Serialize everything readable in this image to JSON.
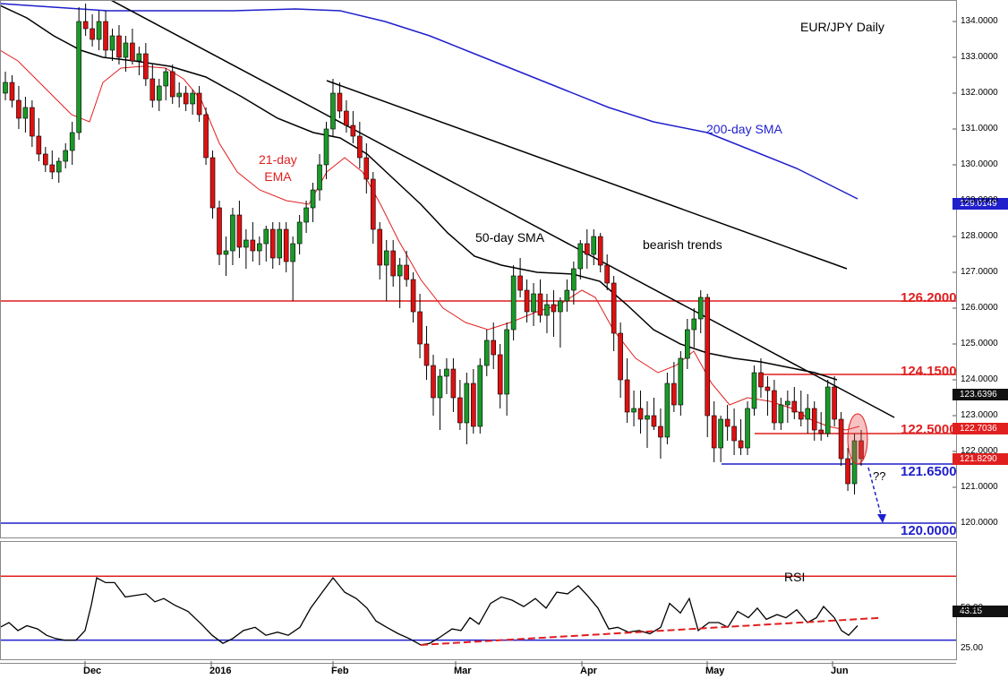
{
  "chart_data": {
    "type": "candlestick",
    "title": "EUR/JPY Daily",
    "price_range": [
      119.6,
      134.6
    ],
    "y_ticks": [
      "134.0000",
      "133.0000",
      "132.0000",
      "131.0000",
      "130.0000",
      "129.0000",
      "128.0000",
      "127.0000",
      "126.0000",
      "125.0000",
      "124.0000",
      "123.0000",
      "122.0000",
      "121.0000",
      "120.0000"
    ],
    "x_ticks": [
      "Dec",
      "2016",
      "Feb",
      "Mar",
      "Apr",
      "May",
      "Jun"
    ],
    "candles": [
      [
        132.0,
        132.6,
        131.8,
        132.3
      ],
      [
        132.3,
        132.5,
        131.6,
        131.8
      ],
      [
        131.8,
        132.2,
        131.0,
        131.3
      ],
      [
        131.3,
        131.9,
        130.9,
        131.6
      ],
      [
        131.6,
        131.8,
        130.5,
        130.8
      ],
      [
        130.8,
        131.3,
        130.1,
        130.3
      ],
      [
        130.3,
        130.5,
        129.8,
        130.0
      ],
      [
        130.0,
        130.4,
        129.6,
        129.8
      ],
      [
        129.8,
        130.2,
        129.5,
        130.1
      ],
      [
        130.1,
        130.6,
        129.9,
        130.4
      ],
      [
        130.4,
        131.2,
        130.0,
        130.9
      ],
      [
        130.9,
        134.4,
        130.7,
        134.0
      ],
      [
        134.0,
        134.5,
        133.6,
        133.8
      ],
      [
        133.8,
        134.2,
        133.3,
        133.5
      ],
      [
        133.5,
        134.3,
        133.2,
        134.0
      ],
      [
        134.0,
        134.3,
        133.0,
        133.2
      ],
      [
        133.2,
        133.8,
        132.9,
        133.6
      ],
      [
        133.6,
        133.9,
        132.8,
        133.0
      ],
      [
        133.0,
        133.6,
        132.6,
        133.4
      ],
      [
        133.4,
        133.8,
        132.8,
        132.9
      ],
      [
        132.9,
        133.3,
        132.5,
        133.1
      ],
      [
        133.1,
        133.4,
        132.2,
        132.4
      ],
      [
        132.4,
        132.8,
        131.6,
        131.8
      ],
      [
        131.8,
        132.4,
        131.5,
        132.2
      ],
      [
        132.2,
        132.7,
        131.8,
        132.6
      ],
      [
        132.6,
        132.8,
        131.7,
        131.9
      ],
      [
        131.9,
        132.3,
        131.6,
        132.0
      ],
      [
        132.0,
        132.2,
        131.5,
        131.7
      ],
      [
        131.7,
        132.1,
        131.4,
        132.0
      ],
      [
        132.0,
        132.2,
        131.2,
        131.4
      ],
      [
        131.4,
        131.6,
        130.0,
        130.2
      ],
      [
        130.2,
        130.4,
        128.5,
        128.8
      ],
      [
        128.8,
        129.0,
        127.2,
        127.5
      ],
      [
        127.5,
        128.0,
        126.9,
        127.6
      ],
      [
        127.6,
        128.8,
        127.2,
        128.6
      ],
      [
        128.6,
        129.0,
        127.4,
        127.7
      ],
      [
        127.7,
        128.2,
        127.1,
        127.9
      ],
      [
        127.9,
        128.4,
        127.3,
        127.6
      ],
      [
        127.6,
        128.0,
        127.2,
        127.8
      ],
      [
        127.8,
        128.3,
        127.3,
        128.2
      ],
      [
        128.2,
        128.4,
        127.1,
        127.4
      ],
      [
        127.4,
        128.4,
        127.2,
        128.2
      ],
      [
        128.2,
        128.4,
        127.0,
        127.3
      ],
      [
        127.3,
        128.0,
        126.2,
        127.8
      ],
      [
        127.8,
        128.6,
        127.5,
        128.4
      ],
      [
        128.4,
        129.0,
        128.1,
        128.8
      ],
      [
        128.8,
        129.5,
        128.4,
        129.3
      ],
      [
        129.3,
        130.3,
        129.0,
        130.0
      ],
      [
        130.0,
        131.2,
        129.6,
        131.0
      ],
      [
        131.0,
        132.4,
        130.8,
        132.0
      ],
      [
        132.0,
        132.3,
        131.3,
        131.5
      ],
      [
        131.5,
        131.8,
        130.9,
        131.1
      ],
      [
        131.1,
        131.5,
        130.6,
        130.8
      ],
      [
        130.8,
        131.2,
        129.9,
        130.2
      ],
      [
        130.2,
        130.6,
        129.2,
        129.6
      ],
      [
        129.6,
        129.8,
        127.8,
        128.2
      ],
      [
        128.2,
        128.4,
        126.8,
        127.2
      ],
      [
        127.2,
        127.9,
        126.2,
        127.6
      ],
      [
        127.6,
        127.9,
        126.6,
        126.9
      ],
      [
        126.9,
        127.4,
        126.0,
        127.2
      ],
      [
        127.2,
        127.6,
        126.6,
        126.8
      ],
      [
        126.8,
        127.0,
        125.6,
        125.9
      ],
      [
        125.9,
        126.4,
        124.6,
        125.0
      ],
      [
        125.0,
        125.5,
        124.0,
        124.4
      ],
      [
        124.4,
        124.7,
        123.0,
        123.5
      ],
      [
        123.5,
        124.3,
        122.6,
        124.1
      ],
      [
        124.1,
        124.6,
        123.6,
        124.3
      ],
      [
        124.3,
        124.6,
        123.1,
        123.5
      ],
      [
        123.5,
        124.0,
        122.6,
        122.8
      ],
      [
        122.8,
        124.2,
        122.2,
        123.9
      ],
      [
        123.9,
        124.3,
        122.5,
        122.7
      ],
      [
        122.7,
        124.6,
        122.5,
        124.4
      ],
      [
        124.4,
        125.4,
        124.1,
        125.1
      ],
      [
        125.1,
        125.6,
        124.3,
        124.7
      ],
      [
        124.7,
        125.0,
        123.2,
        123.6
      ],
      [
        123.6,
        125.6,
        123.0,
        125.4
      ],
      [
        125.4,
        127.2,
        125.1,
        126.9
      ],
      [
        126.9,
        127.4,
        126.3,
        126.5
      ],
      [
        126.5,
        126.8,
        125.6,
        125.9
      ],
      [
        125.9,
        126.7,
        125.5,
        126.4
      ],
      [
        126.4,
        126.8,
        125.6,
        125.8
      ],
      [
        125.8,
        126.4,
        125.3,
        126.1
      ],
      [
        126.1,
        126.5,
        125.2,
        125.9
      ],
      [
        125.9,
        126.3,
        124.9,
        126.2
      ],
      [
        126.2,
        126.8,
        125.9,
        126.5
      ],
      [
        126.5,
        127.3,
        126.1,
        127.1
      ],
      [
        127.1,
        127.9,
        126.8,
        127.8
      ],
      [
        127.8,
        128.2,
        127.1,
        127.5
      ],
      [
        127.5,
        128.2,
        127.2,
        128.0
      ],
      [
        128.0,
        128.1,
        127.0,
        127.2
      ],
      [
        127.2,
        127.5,
        126.5,
        126.7
      ],
      [
        126.7,
        126.9,
        124.8,
        125.3
      ],
      [
        125.3,
        125.6,
        123.5,
        124.0
      ],
      [
        124.0,
        124.6,
        122.8,
        123.1
      ],
      [
        123.1,
        123.7,
        122.7,
        123.2
      ],
      [
        123.2,
        123.7,
        122.5,
        122.9
      ],
      [
        122.9,
        123.4,
        122.1,
        123.0
      ],
      [
        123.0,
        123.5,
        122.6,
        122.7
      ],
      [
        122.7,
        123.2,
        121.8,
        122.4
      ],
      [
        122.4,
        124.2,
        122.2,
        123.9
      ],
      [
        123.9,
        124.5,
        123.1,
        123.3
      ],
      [
        123.3,
        124.8,
        123.0,
        124.6
      ],
      [
        124.6,
        125.7,
        124.3,
        125.4
      ],
      [
        125.4,
        126.0,
        124.9,
        125.7
      ],
      [
        125.7,
        126.5,
        125.3,
        126.3
      ],
      [
        126.3,
        126.4,
        122.4,
        123.0
      ],
      [
        123.0,
        123.4,
        121.7,
        122.1
      ],
      [
        122.1,
        123.0,
        121.7,
        122.9
      ],
      [
        122.9,
        123.3,
        122.3,
        122.7
      ],
      [
        122.7,
        123.2,
        121.9,
        122.3
      ],
      [
        122.3,
        122.9,
        121.9,
        122.1
      ],
      [
        122.1,
        123.4,
        121.9,
        123.2
      ],
      [
        123.2,
        124.4,
        123.0,
        124.2
      ],
      [
        124.2,
        124.6,
        123.5,
        123.8
      ],
      [
        123.8,
        124.1,
        123.0,
        123.7
      ],
      [
        123.7,
        124.0,
        122.6,
        122.8
      ],
      [
        122.8,
        123.5,
        122.6,
        123.3
      ],
      [
        123.3,
        123.7,
        122.8,
        123.4
      ],
      [
        123.4,
        123.8,
        122.9,
        123.1
      ],
      [
        123.1,
        123.7,
        122.7,
        122.9
      ],
      [
        122.9,
        123.6,
        122.5,
        123.2
      ],
      [
        123.2,
        123.4,
        122.3,
        122.6
      ],
      [
        122.6,
        123.1,
        122.3,
        122.5
      ],
      [
        122.5,
        124.0,
        122.4,
        123.8
      ],
      [
        123.8,
        124.1,
        122.7,
        122.9
      ],
      [
        122.9,
        123.1,
        121.6,
        121.8
      ],
      [
        121.8,
        122.1,
        120.9,
        121.1
      ],
      [
        121.1,
        122.5,
        120.8,
        122.3
      ],
      [
        122.3,
        122.6,
        121.6,
        121.8
      ]
    ],
    "sma200": [
      [
        0,
        134.5
      ],
      [
        60,
        134.4
      ],
      [
        120,
        134.3
      ],
      [
        190,
        134.3
      ],
      [
        260,
        134.3
      ],
      [
        330,
        134.35
      ],
      [
        380,
        134.3
      ],
      [
        430,
        134.0
      ],
      [
        480,
        133.6
      ],
      [
        530,
        133.1
      ],
      [
        580,
        132.6
      ],
      [
        630,
        132.1
      ],
      [
        680,
        131.6
      ],
      [
        730,
        131.2
      ],
      [
        790,
        130.9
      ],
      [
        840,
        130.4
      ],
      [
        890,
        129.9
      ],
      [
        930,
        129.4
      ],
      [
        958,
        129.05
      ]
    ],
    "sma50": [
      [
        0,
        134.45
      ],
      [
        30,
        134.1
      ],
      [
        60,
        133.6
      ],
      [
        90,
        133.2
      ],
      [
        115,
        133.0
      ],
      [
        150,
        132.9
      ],
      [
        190,
        132.75
      ],
      [
        230,
        132.45
      ],
      [
        270,
        131.9
      ],
      [
        310,
        131.3
      ],
      [
        350,
        130.9
      ],
      [
        380,
        130.75
      ],
      [
        410,
        130.3
      ],
      [
        440,
        129.6
      ],
      [
        470,
        128.9
      ],
      [
        500,
        128.1
      ],
      [
        530,
        127.45
      ],
      [
        560,
        127.2
      ],
      [
        600,
        127.0
      ],
      [
        640,
        126.95
      ],
      [
        670,
        126.75
      ],
      [
        700,
        126.1
      ],
      [
        730,
        125.4
      ],
      [
        760,
        125.0
      ],
      [
        790,
        124.75
      ],
      [
        820,
        124.6
      ],
      [
        850,
        124.5
      ],
      [
        880,
        124.35
      ],
      [
        910,
        124.2
      ],
      [
        935,
        124.0
      ]
    ],
    "ema21": [
      [
        0,
        133.2
      ],
      [
        20,
        132.9
      ],
      [
        40,
        132.4
      ],
      [
        60,
        131.9
      ],
      [
        80,
        131.4
      ],
      [
        100,
        131.2
      ],
      [
        115,
        132.3
      ],
      [
        135,
        132.7
      ],
      [
        160,
        132.75
      ],
      [
        185,
        132.7
      ],
      [
        205,
        132.4
      ],
      [
        225,
        131.8
      ],
      [
        245,
        130.6
      ],
      [
        265,
        129.8
      ],
      [
        290,
        129.3
      ],
      [
        320,
        129.0
      ],
      [
        345,
        128.9
      ],
      [
        365,
        129.8
      ],
      [
        385,
        130.2
      ],
      [
        405,
        129.8
      ],
      [
        425,
        128.9
      ],
      [
        445,
        127.9
      ],
      [
        470,
        126.8
      ],
      [
        495,
        126.0
      ],
      [
        520,
        125.6
      ],
      [
        545,
        125.4
      ],
      [
        570,
        125.6
      ],
      [
        600,
        125.9
      ],
      [
        625,
        126.1
      ],
      [
        650,
        126.5
      ],
      [
        665,
        126.3
      ],
      [
        685,
        125.4
      ],
      [
        710,
        124.6
      ],
      [
        735,
        124.2
      ],
      [
        755,
        124.4
      ],
      [
        775,
        124.8
      ],
      [
        795,
        123.9
      ],
      [
        815,
        123.3
      ],
      [
        835,
        123.5
      ],
      [
        860,
        123.4
      ],
      [
        885,
        123.2
      ],
      [
        905,
        122.9
      ],
      [
        925,
        122.7
      ],
      [
        945,
        122.6
      ],
      [
        960,
        122.7
      ]
    ],
    "trendlines": [
      {
        "from": [
          120,
          134.65
        ],
        "to": [
          999,
          122.95
        ]
      },
      {
        "from": [
          365,
          132.35
        ],
        "to": [
          946,
          127.1
        ]
      }
    ],
    "levels": {
      "h126": 126.2,
      "h124": 124.15,
      "h1225": 122.5,
      "h1216": 121.65,
      "h120": 120.0
    },
    "rsi_ticks": [
      "50.00",
      "25.00"
    ],
    "rsi_range": [
      18,
      92
    ],
    "rsi_upper": 70,
    "rsi_lower": 30,
    "rsi": [
      [
        0,
        38
      ],
      [
        10,
        41
      ],
      [
        20,
        36
      ],
      [
        30,
        39
      ],
      [
        42,
        37
      ],
      [
        52,
        33
      ],
      [
        62,
        31
      ],
      [
        72,
        30
      ],
      [
        85,
        30
      ],
      [
        95,
        36
      ],
      [
        102,
        52
      ],
      [
        108,
        69
      ],
      [
        118,
        66
      ],
      [
        128,
        66
      ],
      [
        140,
        57
      ],
      [
        152,
        58
      ],
      [
        163,
        59
      ],
      [
        173,
        54
      ],
      [
        183,
        56
      ],
      [
        195,
        52
      ],
      [
        210,
        48
      ],
      [
        225,
        40
      ],
      [
        237,
        33
      ],
      [
        249,
        28
      ],
      [
        260,
        31
      ],
      [
        272,
        36
      ],
      [
        285,
        38
      ],
      [
        297,
        33
      ],
      [
        310,
        35
      ],
      [
        322,
        33
      ],
      [
        335,
        38
      ],
      [
        347,
        50
      ],
      [
        360,
        60
      ],
      [
        372,
        69
      ],
      [
        385,
        60
      ],
      [
        398,
        56
      ],
      [
        410,
        50
      ],
      [
        420,
        42
      ],
      [
        432,
        38
      ],
      [
        445,
        34
      ],
      [
        457,
        31
      ],
      [
        470,
        27
      ],
      [
        480,
        28
      ],
      [
        492,
        32
      ],
      [
        505,
        37
      ],
      [
        515,
        36
      ],
      [
        525,
        44
      ],
      [
        535,
        40
      ],
      [
        548,
        53
      ],
      [
        560,
        57
      ],
      [
        572,
        55
      ],
      [
        585,
        51
      ],
      [
        598,
        56
      ],
      [
        610,
        50
      ],
      [
        622,
        60
      ],
      [
        634,
        59
      ],
      [
        646,
        64
      ],
      [
        656,
        58
      ],
      [
        668,
        50
      ],
      [
        680,
        37
      ],
      [
        690,
        38
      ],
      [
        702,
        35
      ],
      [
        714,
        36
      ],
      [
        726,
        34
      ],
      [
        738,
        38
      ],
      [
        748,
        53
      ],
      [
        760,
        47
      ],
      [
        770,
        56
      ],
      [
        780,
        36
      ],
      [
        792,
        41
      ],
      [
        803,
        41
      ],
      [
        813,
        38
      ],
      [
        824,
        48
      ],
      [
        836,
        44
      ],
      [
        846,
        50
      ],
      [
        856,
        43
      ],
      [
        868,
        46
      ],
      [
        878,
        44
      ],
      [
        890,
        49
      ],
      [
        902,
        41
      ],
      [
        912,
        44
      ],
      [
        920,
        51
      ],
      [
        932,
        44
      ],
      [
        940,
        36
      ],
      [
        948,
        33
      ],
      [
        958,
        39
      ]
    ],
    "rsi_trend": {
      "from": [
        470,
        27
      ],
      "to": [
        985,
        44
      ]
    }
  },
  "labels": {
    "sma200": "200-day SMA",
    "ema21_line1": "21-day",
    "ema21_line2": "EMA",
    "sma50": "50-day SMA",
    "bearish": "bearish trends",
    "rsi": "RSI",
    "question": "??"
  },
  "level_labels": {
    "h126": "126.2000",
    "h124": "124.1500",
    "h1225": "122.5000",
    "h1216": "121.6500",
    "h120": "120.0000"
  },
  "price_tags": {
    "t129": "129.0149",
    "t1236": "123.6396",
    "t1227": "122.7036",
    "t1218": "121.8290",
    "rsi_last": "43.15"
  },
  "colors": {
    "up": "#1a9a28",
    "down": "#dd1111",
    "sma200": "#1f1fcc",
    "sma50": "#000000",
    "ema21": "#e01f1f",
    "red_level": "#e01f1f",
    "blue_level": "#1f1fcc"
  }
}
